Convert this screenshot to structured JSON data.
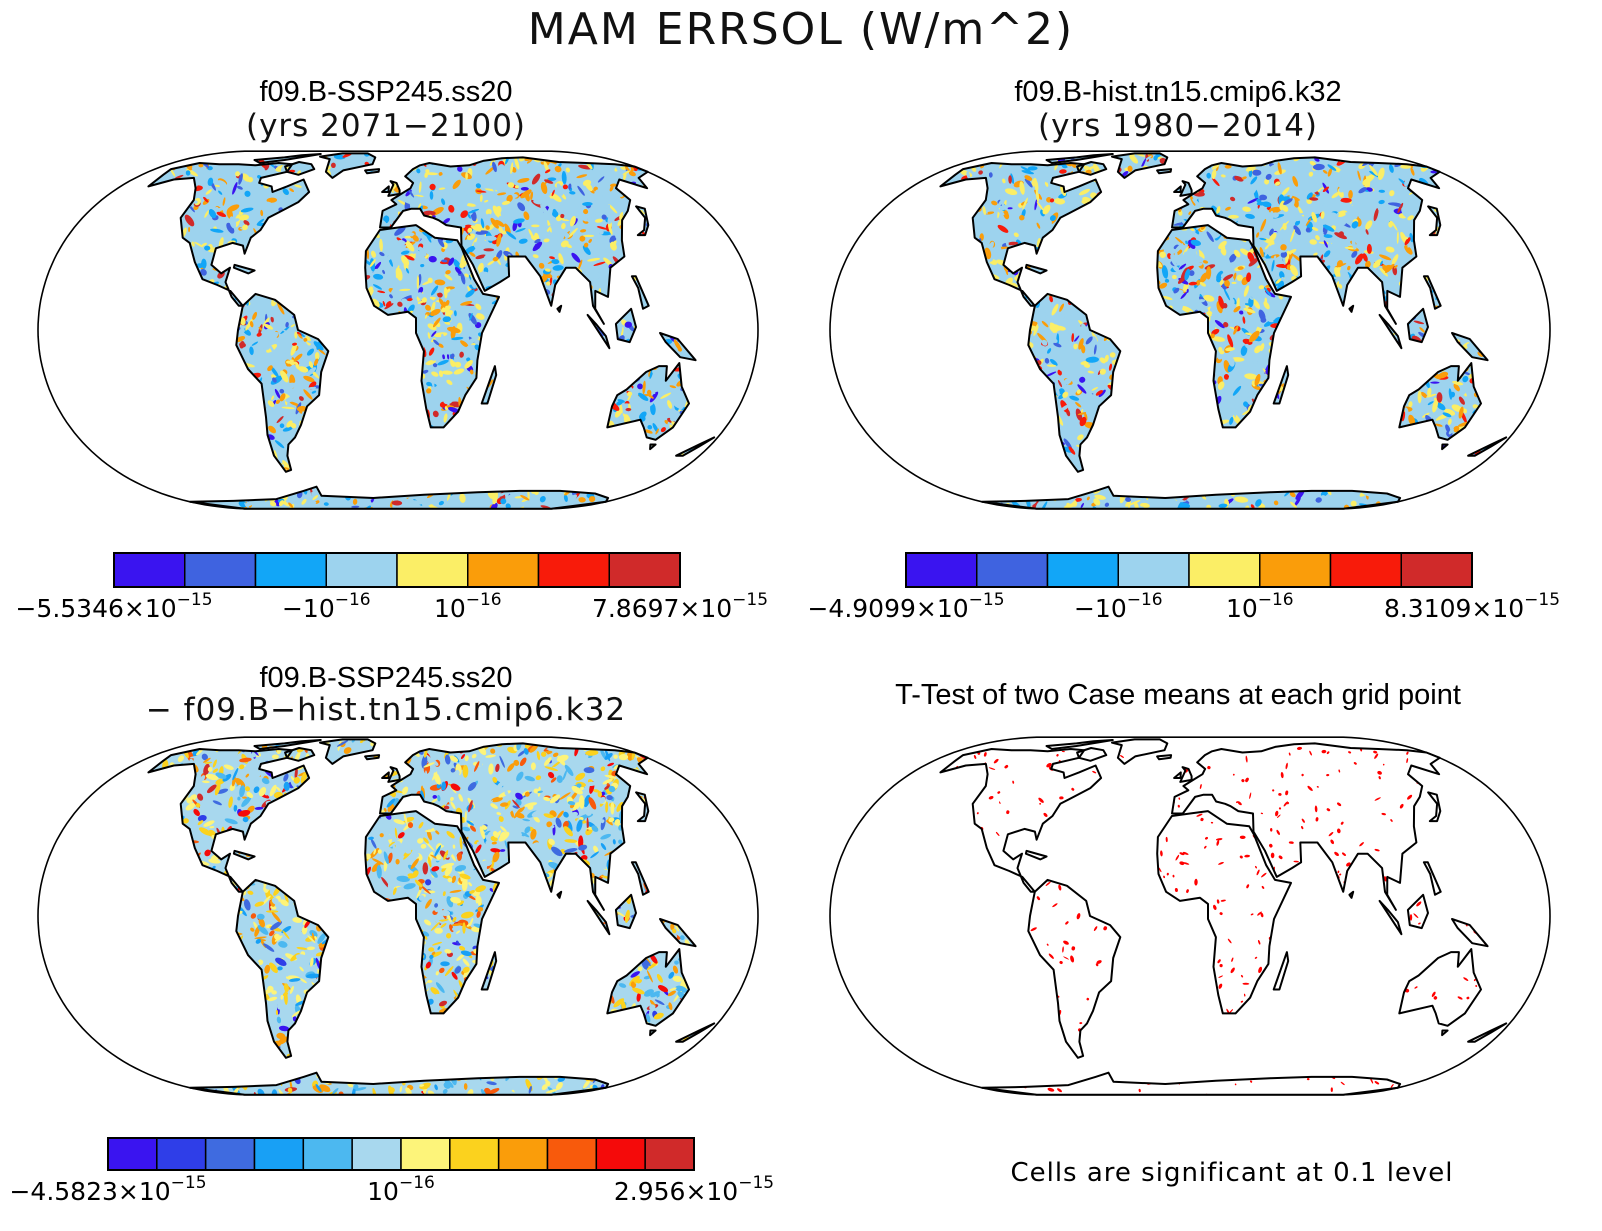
{
  "figure_title": "MAM ERRSOL (W/m^2)",
  "panels": [
    {
      "title": "f09.B-SSP245.ss20",
      "subtitle": "(yrs 2071−2100)",
      "colorbar": {
        "colors": [
          "#3a14f0",
          "#3f63e0",
          "#12a6f7",
          "#9dd3ee",
          "#fbee66",
          "#fa9d0a",
          "#f81b0a",
          "#d02a2a"
        ],
        "labels": [
          {
            "pos": 0,
            "text": "−5.5346×10",
            "exp": "−15"
          },
          {
            "pos": 3,
            "text": "−10",
            "exp": "−16"
          },
          {
            "pos": 5,
            "text": "10",
            "exp": "−16"
          },
          {
            "pos": 8,
            "text": "7.8697×10",
            "exp": "−15"
          }
        ]
      }
    },
    {
      "title": "f09.B-hist.tn15.cmip6.k32",
      "subtitle": "(yrs 1980−2014)",
      "colorbar": {
        "colors": [
          "#3a14f0",
          "#3f63e0",
          "#12a6f7",
          "#9dd3ee",
          "#fbee66",
          "#fa9d0a",
          "#f81b0a",
          "#d02a2a"
        ],
        "labels": [
          {
            "pos": 0,
            "text": "−4.9099×10",
            "exp": "−15"
          },
          {
            "pos": 3,
            "text": "−10",
            "exp": "−16"
          },
          {
            "pos": 5,
            "text": "10",
            "exp": "−16"
          },
          {
            "pos": 8,
            "text": "8.3109×10",
            "exp": "−15"
          }
        ]
      }
    },
    {
      "title": "f09.B-SSP245.ss20",
      "subtitle": "− f09.B−hist.tn15.cmip6.k32",
      "colorbar": {
        "colors": [
          "#3a14f0",
          "#2f3ee8",
          "#3f6be0",
          "#18a0f5",
          "#4cb8f0",
          "#a8d8ee",
          "#fdf47a",
          "#fbd21e",
          "#fa9d0a",
          "#f85a0c",
          "#f50a0a",
          "#d02a2a"
        ],
        "labels": [
          {
            "pos": 0,
            "text": "−4.5823×10",
            "exp": "−15"
          },
          {
            "pos": 6,
            "text": "10",
            "exp": "−16"
          },
          {
            "pos": 12,
            "text": "2.956×10",
            "exp": "−15"
          }
        ]
      }
    },
    {
      "title": "T-Test of two Case means at each grid point",
      "note": "Cells are significant at 0.1 level",
      "significance_color": "#ff0000"
    }
  ]
}
